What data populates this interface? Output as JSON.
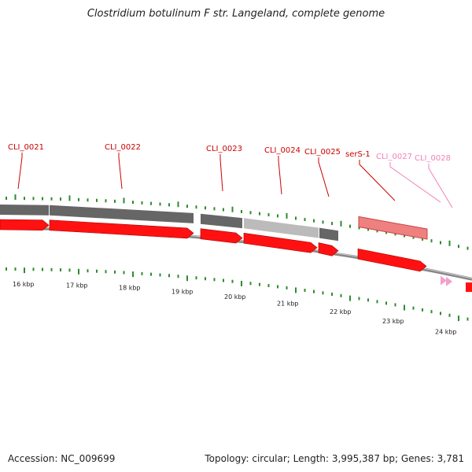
{
  "title": "Clostridium botulinum F str. Langeland, complete genome",
  "footer": {
    "accession": "Accession: NC_009699",
    "summary": "Topology: circular; Length: 3,995,387 bp; Genes: 3,781"
  },
  "colors": {
    "gene_label_red": "#cc0000",
    "gene_label_pink": "#f080b8",
    "cds_red": "#ff1111",
    "tick_green": "#2e8b2e",
    "gray_dark": "#666666",
    "gray_light": "#bbbbbb"
  },
  "gene_labels": [
    {
      "text": "CLI_0021",
      "color": "red"
    },
    {
      "text": "CLI_0022",
      "color": "red"
    },
    {
      "text": "CLI_0023",
      "color": "red"
    },
    {
      "text": "CLI_0024",
      "color": "red"
    },
    {
      "text": "CLI_0025",
      "color": "red"
    },
    {
      "text": "serS-1",
      "color": "red"
    },
    {
      "text": "CLI_0027",
      "color": "pink"
    },
    {
      "text": "CLI_0028",
      "color": "pink"
    }
  ],
  "kbp_labels": [
    "16 kbp",
    "17 kbp",
    "18 kbp",
    "19 kbp",
    "20 kbp",
    "21 kbp",
    "22 kbp",
    "23 kbp",
    "24 kbp"
  ]
}
